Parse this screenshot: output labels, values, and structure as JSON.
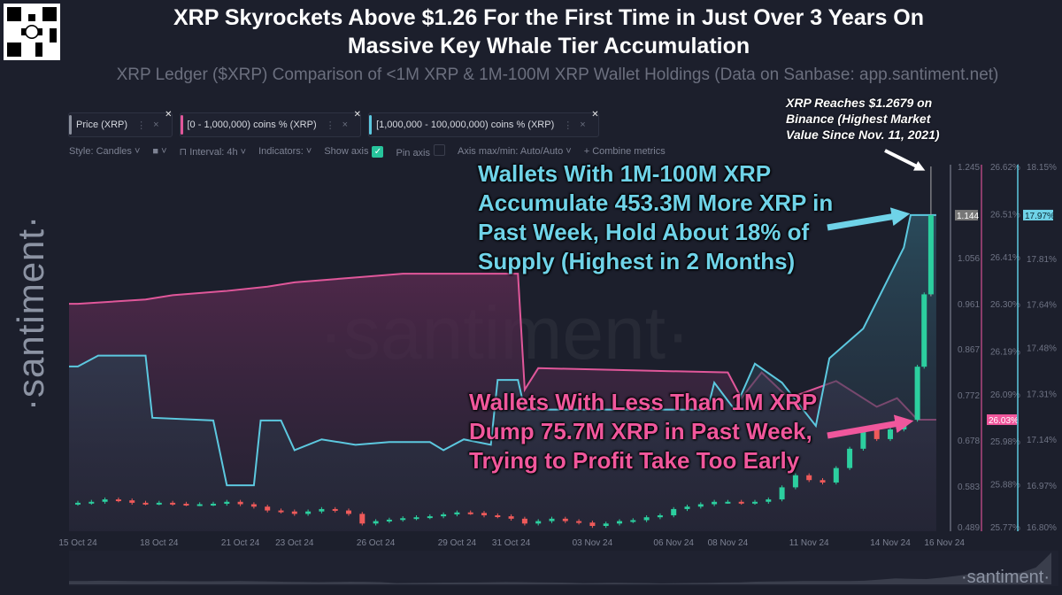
{
  "header": {
    "title_line1": "XRP Skyrockets Above $1.26 For the First Time in Just Over 3 Years On",
    "title_line2": "Massive Key Whale Tier Accumulation",
    "subtitle": "XRP Ledger ($XRP) Comparison of <1M XRP & 1M-100M XRP Wallet Holdings (Data on Sanbase: app.santiment.net)"
  },
  "branding": {
    "watermark": "·santiment·",
    "vertical": "·santiment·",
    "logo": "·santiment·"
  },
  "metrics": [
    {
      "label": "Price (XRP)",
      "color": "#8a8f9c"
    },
    {
      "label": "[0 - 1,000,000) coins % (XRP)",
      "color": "#e0579a"
    },
    {
      "label": "[1,000,000 - 100,000,000) coins % (XRP)",
      "color": "#5cc8df"
    }
  ],
  "toolbar": {
    "style": "Style: Candles",
    "interval": "Interval: 4h",
    "indicators": "Indicators:",
    "show_axis": "Show axis",
    "show_axis_checked": true,
    "pin_axis": "Pin axis",
    "pin_axis_checked": false,
    "axis_minmax": "Axis max/min: Auto/Auto",
    "combine": "+ Combine metrics"
  },
  "annotations": {
    "top_note": [
      "XRP Reaches $1.2679 on",
      "Binance (Highest Market",
      "Value Since Nov. 11, 2021)"
    ],
    "whales": [
      "Wallets With 1M-100M XRP",
      "Accumulate 453.3M More XRP in",
      "Past Week, Hold About 18% of",
      "Supply (Highest in 2 Months)"
    ],
    "small": [
      "Wallets With Less Than 1M XRP",
      "Dump 75.7M XRP in Past Week,",
      "Trying to Profit Take Too Early"
    ],
    "whales_color": "#6fd3e8",
    "small_color": "#f0579c"
  },
  "chart_data": {
    "type": "candlestick+line",
    "x_ticks": [
      "15 Oct 24",
      "18 Oct 24",
      "21 Oct 24",
      "23 Oct 24",
      "26 Oct 24",
      "29 Oct 24",
      "31 Oct 24",
      "03 Nov 24",
      "06 Nov 24",
      "08 Nov 24",
      "11 Nov 24",
      "14 Nov 24",
      "16 Nov 24"
    ],
    "x_tick_dates": [
      "2024-10-15",
      "2024-10-18",
      "2024-10-21",
      "2024-10-23",
      "2024-10-26",
      "2024-10-29",
      "2024-10-31",
      "2024-11-03",
      "2024-11-06",
      "2024-11-08",
      "2024-11-11",
      "2024-11-14",
      "2024-11-16"
    ],
    "axes": [
      {
        "series": "Price (XRP)",
        "ylim": [
          0.489,
          1.245
        ],
        "ticks": [
          "1.245",
          "1.056",
          "0.961",
          "0.867",
          "0.772",
          "0.678",
          "0.583",
          "0.489"
        ],
        "current": "1.144",
        "color": "#8a8f9c"
      },
      {
        "series": "[0 - 1,000,000) coins % (XRP)",
        "ylim": [
          25.77,
          26.62
        ],
        "ticks": [
          "26.62%",
          "26.51%",
          "26.41%",
          "26.30%",
          "26.19%",
          "26.09%",
          "25.98%",
          "25.88%",
          "25.77%"
        ],
        "current": "26.03%",
        "color": "#e0579a"
      },
      {
        "series": "[1,000,000 - 100,000,000) coins % (XRP)",
        "ylim": [
          16.8,
          18.15
        ],
        "ticks": [
          "18.15%",
          "17.81%",
          "17.64%",
          "17.48%",
          "17.31%",
          "17.14%",
          "16.97%",
          "16.80%"
        ],
        "current": "17.97%",
        "color": "#5cc8df"
      }
    ],
    "price_closes": [
      [
        "2024-10-15T00",
        0.548
      ],
      [
        "2024-10-15T12",
        0.55
      ],
      [
        "2024-10-16T00",
        0.555
      ],
      [
        "2024-10-16T12",
        0.553
      ],
      [
        "2024-10-17T00",
        0.548
      ],
      [
        "2024-10-17T12",
        0.547
      ],
      [
        "2024-10-18T00",
        0.548
      ],
      [
        "2024-10-18T12",
        0.546
      ],
      [
        "2024-10-19T00",
        0.545
      ],
      [
        "2024-10-19T12",
        0.545
      ],
      [
        "2024-10-20T00",
        0.546
      ],
      [
        "2024-10-20T12",
        0.55
      ],
      [
        "2024-10-21T00",
        0.545
      ],
      [
        "2024-10-21T12",
        0.54
      ],
      [
        "2024-10-22T00",
        0.532
      ],
      [
        "2024-10-22T12",
        0.53
      ],
      [
        "2024-10-23T00",
        0.525
      ],
      [
        "2024-10-23T12",
        0.53
      ],
      [
        "2024-10-24T00",
        0.535
      ],
      [
        "2024-10-24T12",
        0.532
      ],
      [
        "2024-10-25T00",
        0.525
      ],
      [
        "2024-10-25T12",
        0.505
      ],
      [
        "2024-10-26T00",
        0.51
      ],
      [
        "2024-10-26T12",
        0.513
      ],
      [
        "2024-10-27T00",
        0.516
      ],
      [
        "2024-10-27T12",
        0.518
      ],
      [
        "2024-10-28T00",
        0.52
      ],
      [
        "2024-10-28T12",
        0.524
      ],
      [
        "2024-10-29T00",
        0.528
      ],
      [
        "2024-10-29T12",
        0.527
      ],
      [
        "2024-10-30T00",
        0.522
      ],
      [
        "2024-10-30T12",
        0.52
      ],
      [
        "2024-10-31T00",
        0.515
      ],
      [
        "2024-10-31T12",
        0.505
      ],
      [
        "2024-11-01T00",
        0.51
      ],
      [
        "2024-11-01T12",
        0.515
      ],
      [
        "2024-11-02T00",
        0.51
      ],
      [
        "2024-11-02T12",
        0.507
      ],
      [
        "2024-11-03T00",
        0.5
      ],
      [
        "2024-11-03T12",
        0.505
      ],
      [
        "2024-11-04T00",
        0.51
      ],
      [
        "2024-11-04T12",
        0.512
      ],
      [
        "2024-11-05T00",
        0.518
      ],
      [
        "2024-11-05T12",
        0.522
      ],
      [
        "2024-11-06T00",
        0.535
      ],
      [
        "2024-11-06T12",
        0.54
      ],
      [
        "2024-11-07T00",
        0.545
      ],
      [
        "2024-11-07T12",
        0.55
      ],
      [
        "2024-11-08T00",
        0.55
      ],
      [
        "2024-11-08T12",
        0.548
      ],
      [
        "2024-11-09T00",
        0.55
      ],
      [
        "2024-11-09T12",
        0.555
      ],
      [
        "2024-11-10T00",
        0.58
      ],
      [
        "2024-11-10T12",
        0.605
      ],
      [
        "2024-11-11T00",
        0.595
      ],
      [
        "2024-11-11T12",
        0.59
      ],
      [
        "2024-11-12T00",
        0.62
      ],
      [
        "2024-11-12T12",
        0.66
      ],
      [
        "2024-11-13T00",
        0.7
      ],
      [
        "2024-11-13T12",
        0.68
      ],
      [
        "2024-11-14T00",
        0.7
      ],
      [
        "2024-11-14T12",
        0.72
      ],
      [
        "2024-11-15T00",
        0.83
      ],
      [
        "2024-11-15T06",
        0.98
      ],
      [
        "2024-11-15T12",
        1.144
      ]
    ],
    "price_high": 1.2679,
    "small_wallets_pct": [
      [
        "2024-10-15T00",
        26.3
      ],
      [
        "2024-10-17T12",
        26.31
      ],
      [
        "2024-10-18T12",
        26.32
      ],
      [
        "2024-10-20T12",
        26.33
      ],
      [
        "2024-10-22T00",
        26.34
      ],
      [
        "2024-10-23T00",
        26.35
      ],
      [
        "2024-10-25T00",
        26.36
      ],
      [
        "2024-10-27T00",
        26.37
      ],
      [
        "2024-10-31T06",
        26.37
      ],
      [
        "2024-10-31T12",
        26.1
      ],
      [
        "2024-11-01T00",
        26.15
      ],
      [
        "2024-11-08T00",
        26.14
      ],
      [
        "2024-11-08T12",
        26.08
      ],
      [
        "2024-11-09T06",
        26.14
      ],
      [
        "2024-11-10T06",
        26.08
      ],
      [
        "2024-11-12T00",
        26.12
      ],
      [
        "2024-11-13T12",
        26.06
      ],
      [
        "2024-11-14T06",
        26.08
      ],
      [
        "2024-11-15T00",
        26.03
      ],
      [
        "2024-11-15T12",
        26.03
      ]
    ],
    "whale_wallets_pct": [
      [
        "2024-10-15T00",
        17.41
      ],
      [
        "2024-10-15T18",
        17.45
      ],
      [
        "2024-10-17T12",
        17.45
      ],
      [
        "2024-10-17T18",
        17.22
      ],
      [
        "2024-10-20T00",
        17.21
      ],
      [
        "2024-10-20T12",
        16.97
      ],
      [
        "2024-10-21T12",
        16.97
      ],
      [
        "2024-10-21T18",
        17.21
      ],
      [
        "2024-10-22T12",
        17.21
      ],
      [
        "2024-10-23T00",
        17.1
      ],
      [
        "2024-10-24T00",
        17.14
      ],
      [
        "2024-10-25T06",
        17.12
      ],
      [
        "2024-10-26T12",
        17.13
      ],
      [
        "2024-10-28T00",
        17.13
      ],
      [
        "2024-10-28T12",
        17.1
      ],
      [
        "2024-10-29T06",
        17.14
      ],
      [
        "2024-10-30T06",
        17.12
      ],
      [
        "2024-10-30T12",
        17.36
      ],
      [
        "2024-10-31T06",
        17.36
      ],
      [
        "2024-10-31T12",
        17.25
      ],
      [
        "2024-11-07T06",
        17.25
      ],
      [
        "2024-11-07T12",
        17.35
      ],
      [
        "2024-11-08T06",
        17.25
      ],
      [
        "2024-11-09T00",
        17.42
      ],
      [
        "2024-11-10T00",
        17.35
      ],
      [
        "2024-11-11T06",
        17.19
      ],
      [
        "2024-11-11T18",
        17.44
      ],
      [
        "2024-11-13T00",
        17.55
      ],
      [
        "2024-11-14T12",
        17.85
      ],
      [
        "2024-11-14T18",
        17.97
      ],
      [
        "2024-11-15T12",
        17.97
      ]
    ],
    "colors": {
      "up": "#2ccf9f",
      "down": "#ef5a5a"
    },
    "grid": false,
    "legend": "top-left"
  }
}
